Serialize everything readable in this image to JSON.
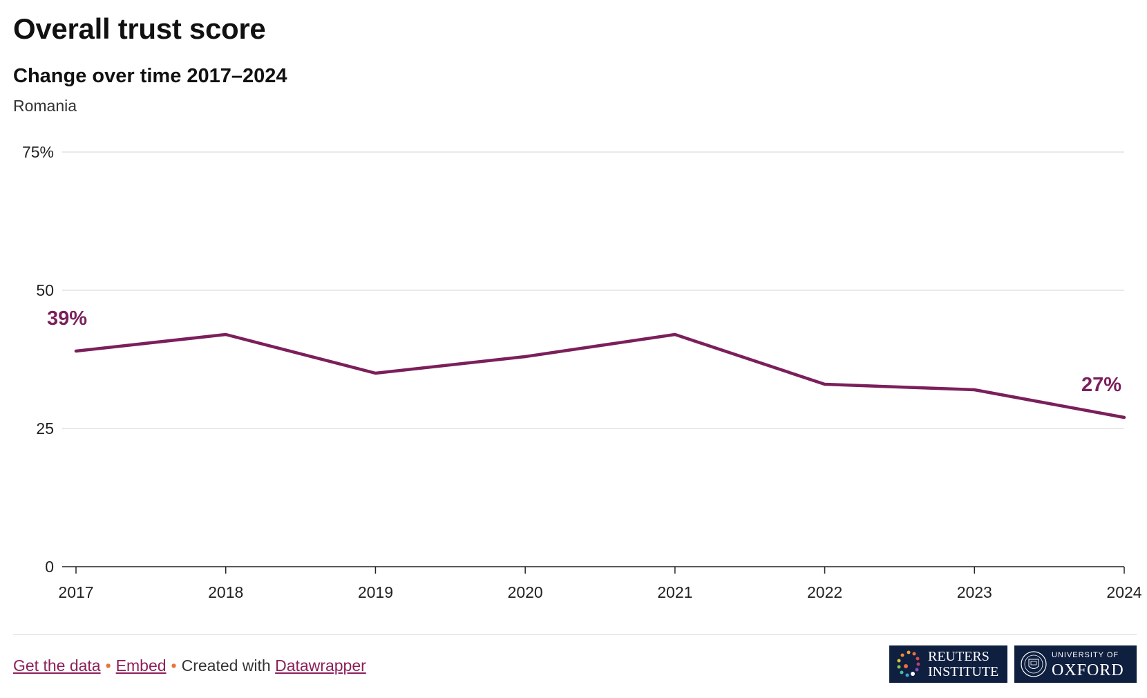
{
  "title": "Overall trust score",
  "subtitle": "Change over time 2017–2024",
  "description": "Romania",
  "chart_data": {
    "type": "line",
    "x": [
      "2017",
      "2018",
      "2019",
      "2020",
      "2021",
      "2022",
      "2023",
      "2024"
    ],
    "series": [
      {
        "values": [
          39,
          42,
          35,
          38,
          42,
          33,
          32,
          27
        ]
      }
    ],
    "ylim": [
      0,
      75
    ],
    "yticks": [
      0,
      25,
      50,
      75
    ],
    "ytick_labels": [
      "0",
      "25",
      "50",
      "75%"
    ],
    "annotations": [
      {
        "x": "2017",
        "text": "39%"
      },
      {
        "x": "2024",
        "text": "27%"
      }
    ],
    "line_color": "#7b1f5b",
    "grid": true
  },
  "footer": {
    "get_data": "Get the data",
    "separator1": "•",
    "embed": "Embed",
    "separator2": "•",
    "created_with": "Created with",
    "datawrapper": "Datawrapper"
  },
  "logos": {
    "reuters_line1": "REUTERS",
    "reuters_line2": "INSTITUTE",
    "oxford_line1": "UNIVERSITY OF",
    "oxford_line2": "OXFORD"
  },
  "colors": {
    "logo_bg": "#0f1f3f",
    "link": "#8c1f5a",
    "dot": "#e8743b"
  }
}
